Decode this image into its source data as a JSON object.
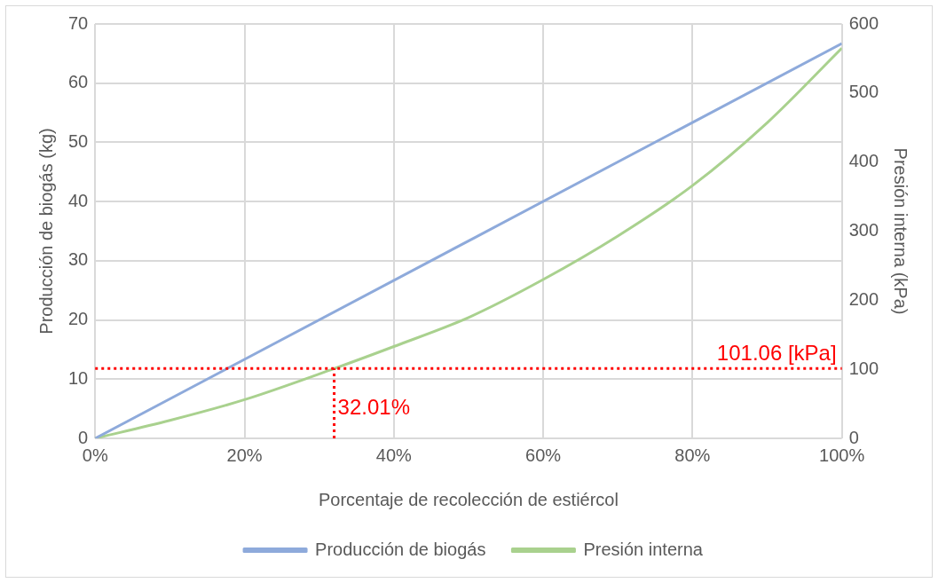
{
  "chart_data": {
    "type": "line",
    "xlabel": "Porcentaje de recolección de estiércol",
    "ylabel": "Producción de biogás (kg)",
    "y2label": "Presión interna (kPa)",
    "xlim": [
      0,
      100
    ],
    "xticks": [
      {
        "value": 0,
        "label": "0%"
      },
      {
        "value": 20,
        "label": "20%"
      },
      {
        "value": 40,
        "label": "40%"
      },
      {
        "value": 60,
        "label": "60%"
      },
      {
        "value": 80,
        "label": "80%"
      },
      {
        "value": 100,
        "label": "100%"
      }
    ],
    "ylim": [
      0,
      70
    ],
    "yticks": [
      0,
      10,
      20,
      30,
      40,
      50,
      60,
      70
    ],
    "y2lim": [
      0,
      600
    ],
    "y2ticks": [
      0,
      100,
      200,
      300,
      400,
      500,
      600
    ],
    "series": [
      {
        "name": "Producción de biogás",
        "color": "#8eaadb",
        "x": [
          0,
          100
        ],
        "values": [
          0,
          66.7
        ]
      },
      {
        "name": "Presión interna",
        "color": "#a9d18e",
        "axis": "y2",
        "x": [
          0,
          10,
          20,
          32.01,
          40,
          50,
          60,
          70,
          80,
          90,
          100
        ],
        "values": [
          0,
          26,
          56,
          101.06,
          133,
          175,
          230,
          293,
          366,
          457,
          565
        ]
      }
    ],
    "ref_lines": [
      {
        "axis": "y2",
        "value": 101.06,
        "label": "101.06 [kPa]",
        "color": "#ff0000",
        "line_style": "dotted"
      },
      {
        "axis": "x",
        "value": 32.01,
        "label": "32.01%",
        "color": "#ff0000",
        "line_style": "dotted"
      }
    ],
    "grid": true,
    "legend": "bottom",
    "marker": "none",
    "line_style": "solid"
  }
}
